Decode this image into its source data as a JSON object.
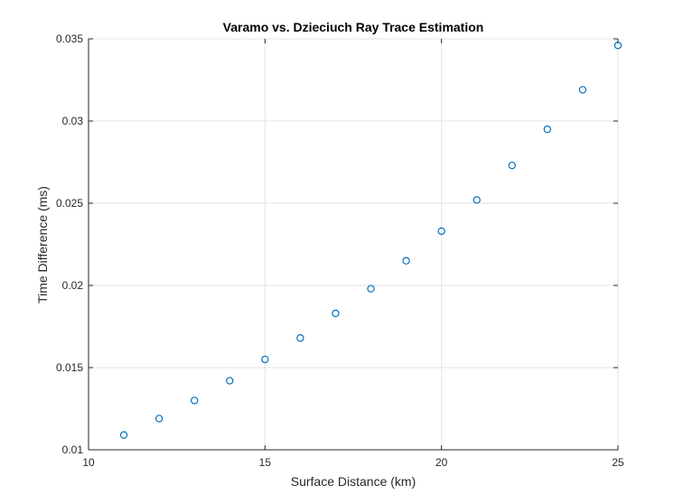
{
  "chart_data": {
    "type": "scatter",
    "title": "Varamo vs. Dzieciuch Ray Trace Estimation",
    "xlabel": "Surface Distance (km)",
    "ylabel": "Time Difference (ms)",
    "xlim": [
      10,
      25
    ],
    "ylim": [
      0.01,
      0.035
    ],
    "xticks": [
      10,
      15,
      20,
      25
    ],
    "xtick_labels": [
      "10",
      "15",
      "20",
      "25"
    ],
    "yticks": [
      0.01,
      0.015,
      0.02,
      0.025,
      0.03,
      0.035
    ],
    "ytick_labels": [
      "0.01",
      "0.015",
      "0.02",
      "0.025",
      "0.03",
      "0.035"
    ],
    "grid": true,
    "marker": "circle-open",
    "color": "#0072bd",
    "series": [
      {
        "name": "Time Difference",
        "x": [
          11,
          12,
          13,
          14,
          15,
          16,
          17,
          18,
          19,
          20,
          21,
          22,
          23,
          24,
          25
        ],
        "y": [
          0.0109,
          0.0119,
          0.013,
          0.0142,
          0.0155,
          0.0168,
          0.0183,
          0.0198,
          0.0215,
          0.0233,
          0.0252,
          0.0273,
          0.0295,
          0.0319,
          0.0346
        ]
      }
    ]
  }
}
